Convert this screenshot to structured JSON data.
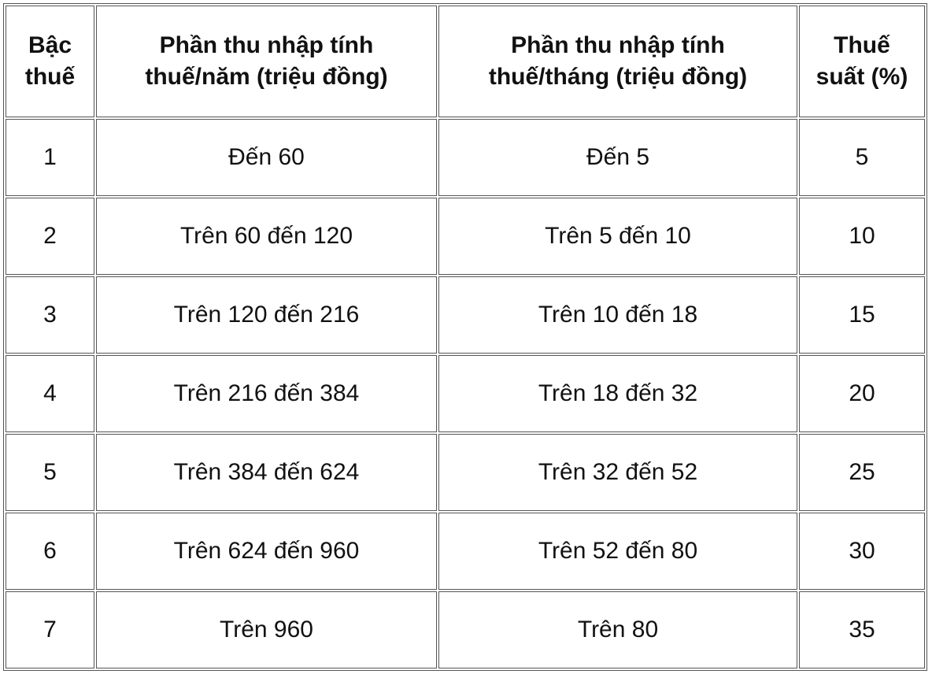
{
  "table": {
    "header": [
      "Bậc thuế",
      "Phần thu nhập tính thuế/năm (triệu đồng)",
      "Phần thu nhập tính thuế/tháng (triệu đồng)",
      "Thuế suất (%)"
    ],
    "rows": [
      [
        "1",
        "Đến 60",
        "Đến 5",
        "5"
      ],
      [
        "2",
        "Trên 60 đến 120",
        "Trên 5 đến 10",
        "10"
      ],
      [
        "3",
        "Trên 120 đến 216",
        "Trên 10 đến 18",
        "15"
      ],
      [
        "4",
        "Trên 216 đến 384",
        "Trên 18 đến 32",
        "20"
      ],
      [
        "5",
        "Trên 384 đến 624",
        "Trên 32 đến 52",
        "25"
      ],
      [
        "6",
        "Trên 624 đến 960",
        "Trên 52 đến 80",
        "30"
      ],
      [
        "7",
        "Trên 960",
        "Trên 80",
        "35"
      ]
    ]
  }
}
